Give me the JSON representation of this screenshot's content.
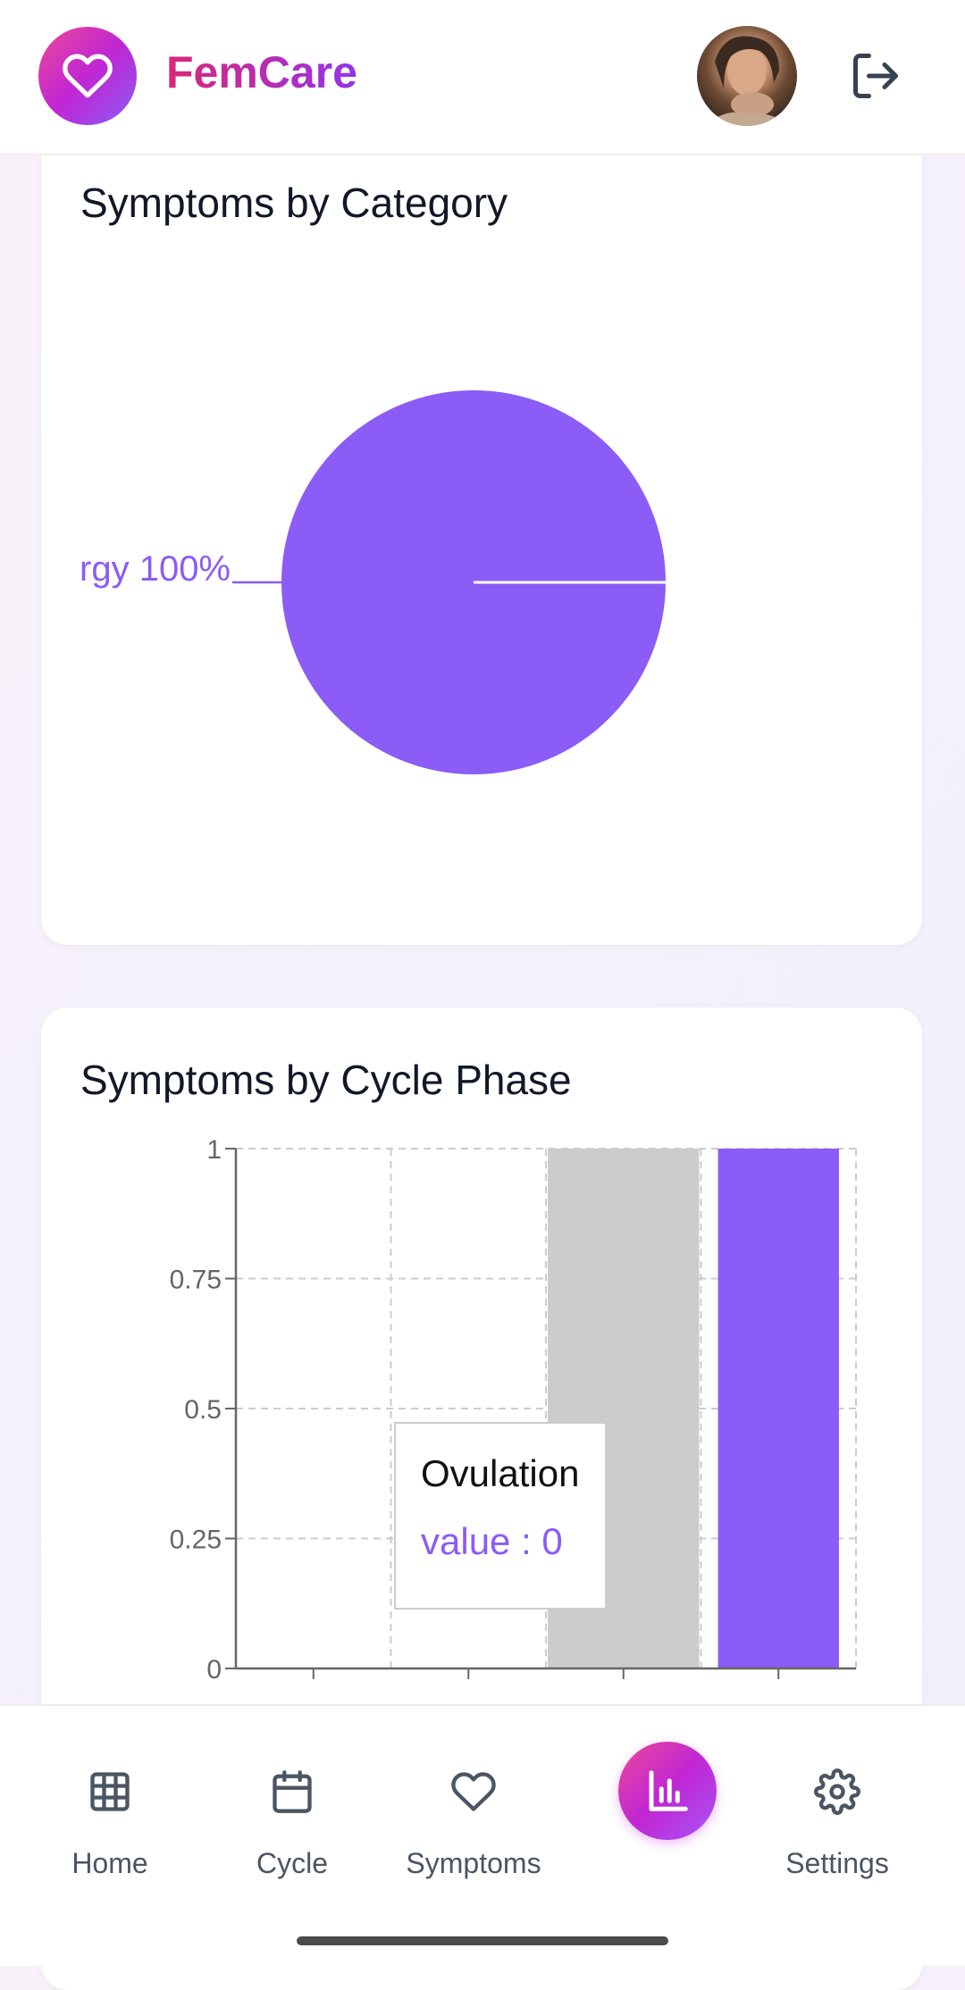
{
  "app": {
    "name": "FemCare"
  },
  "header": {
    "avatar_alt": "profile photo",
    "logout_icon": "logout-icon",
    "logo_icon": "heart-icon"
  },
  "pie_card": {
    "title": "Symptoms by Category",
    "slice_label": "rgy 100%"
  },
  "bar_card": {
    "title": "Symptoms by Cycle Phase",
    "tooltip": {
      "label": "Ovulation",
      "value_text": "value : 0"
    }
  },
  "chart_data": [
    {
      "type": "pie",
      "title": "Symptoms by Category",
      "slices": [
        {
          "label": "rgy",
          "value": 100,
          "color": "#8b5cf6"
        }
      ]
    },
    {
      "type": "bar",
      "title": "Symptoms by Cycle Phase",
      "categories": [
        "",
        "",
        "",
        ""
      ],
      "values": [
        0,
        0,
        1,
        1
      ],
      "highlighted_index": 2,
      "highlight_color": "#cccccc",
      "bar_color": "#8b5cf6",
      "yticks": [
        "0",
        "0.25",
        "0.5",
        "0.75",
        "1"
      ],
      "ylim": [
        0,
        1
      ],
      "grid": true
    }
  ],
  "nav": {
    "items": [
      {
        "label": "Home",
        "icon": "grid-icon"
      },
      {
        "label": "Cycle",
        "icon": "calendar-icon"
      },
      {
        "label": "Symptoms",
        "icon": "heart-icon"
      },
      {
        "label": "",
        "icon": "bar-chart-icon"
      },
      {
        "label": "Settings",
        "icon": "gear-icon"
      }
    ]
  },
  "colors": {
    "accent_pink": "#ec4899",
    "accent_purple": "#8b5cf6",
    "brand_gradient_end": "#9333ea"
  }
}
